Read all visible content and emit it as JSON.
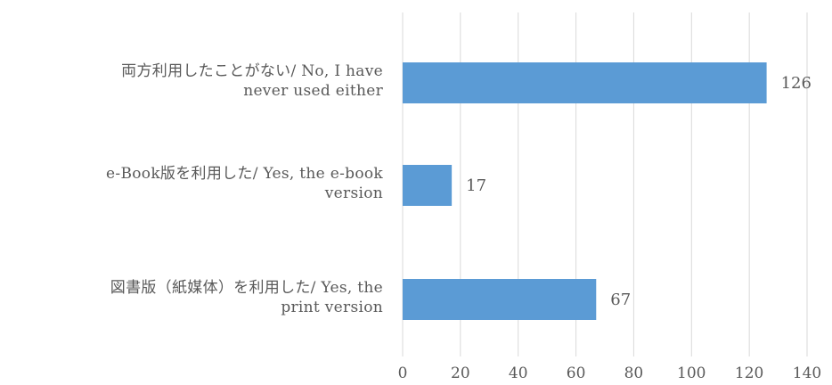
{
  "chart_data": {
    "type": "bar",
    "orientation": "horizontal",
    "categories": [
      [
        "両方利用したことがない/ No, I have",
        "never used either"
      ],
      [
        "e-Book版を利用した/ Yes, the e-book",
        "version"
      ],
      [
        "図書版（紙媒体）を利用した/ Yes, the",
        "print version"
      ]
    ],
    "values": [
      126,
      17,
      67
    ],
    "data_labels": [
      "126",
      "17",
      "67"
    ],
    "xlim": [
      0,
      140
    ],
    "xticks": [
      0,
      20,
      40,
      60,
      80,
      100,
      120,
      140
    ],
    "xtick_labels": [
      "0",
      "20",
      "40",
      "60",
      "80",
      "100",
      "120",
      "140"
    ],
    "grid": true,
    "legend": "none",
    "title": "",
    "xlabel": "",
    "ylabel": "",
    "colors": {
      "bar": "#5b9bd5",
      "grid": "#d9d9d9",
      "text": "#595959"
    }
  }
}
